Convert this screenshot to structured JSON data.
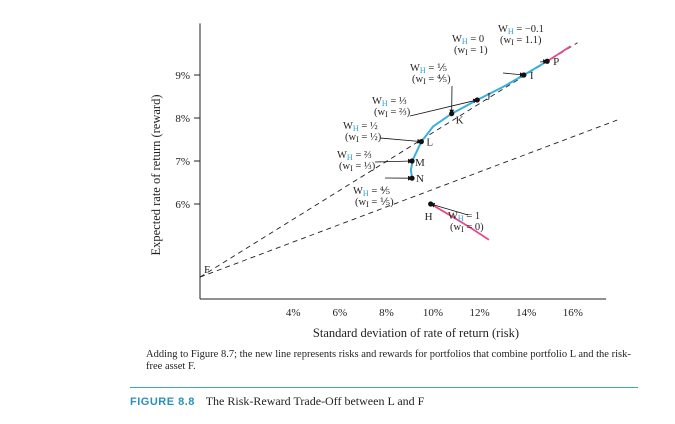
{
  "chart_data": {
    "type": "line",
    "xlabel": "Standard deviation of rate of return (risk)",
    "ylabel": "Expected rate of return (reward)",
    "x_ticks": [
      "4%",
      "6%",
      "8%",
      "10%",
      "12%",
      "14%",
      "16%"
    ],
    "x_tick_values": [
      4,
      6,
      8,
      10,
      12,
      14,
      16
    ],
    "y_ticks": [
      "6%",
      "7%",
      "8%",
      "9%"
    ],
    "y_tick_values": [
      6,
      7,
      8,
      9
    ],
    "xlim": [
      0,
      17
    ],
    "ylim": [
      4.0,
      10.2
    ],
    "grid": false,
    "curves": {
      "efficient_frontier": {
        "color": "#3ab0dc",
        "points": [
          [
            9.1,
            6.6
          ],
          [
            9.05,
            6.8
          ],
          [
            9.15,
            7.05
          ],
          [
            9.5,
            7.45
          ],
          [
            10.0,
            7.8
          ],
          [
            10.8,
            8.1
          ],
          [
            11.9,
            8.42
          ],
          [
            13.0,
            8.72
          ],
          [
            13.9,
            9.0
          ],
          [
            14.9,
            9.32
          ]
        ]
      },
      "lower_branch": {
        "color": "#e64a8c",
        "points": [
          [
            9.9,
            6.0
          ],
          [
            10.7,
            5.75
          ],
          [
            11.6,
            5.45
          ],
          [
            12.4,
            5.17
          ]
        ]
      },
      "upper_extension": {
        "color": "#e64a8c",
        "points": [
          [
            14.9,
            9.32
          ],
          [
            15.9,
            9.67
          ]
        ]
      },
      "line_F_L": {
        "style": "dashed",
        "points": [
          [
            0,
            4.3
          ],
          [
            16.2,
            9.75
          ]
        ]
      },
      "line_F_H": {
        "style": "dashed",
        "points": [
          [
            0,
            4.3
          ],
          [
            17.9,
            7.95
          ]
        ]
      }
    },
    "points": [
      {
        "label": "F",
        "x": 0.0,
        "y": 4.3
      },
      {
        "label": "H",
        "x": 9.9,
        "y": 6.0
      },
      {
        "label": "N",
        "x": 9.1,
        "y": 6.6
      },
      {
        "label": "M",
        "x": 9.1,
        "y": 7.0
      },
      {
        "label": "L",
        "x": 9.5,
        "y": 7.45
      },
      {
        "label": "K",
        "x": 10.8,
        "y": 8.1
      },
      {
        "label": "J",
        "x": 11.9,
        "y": 8.42
      },
      {
        "label": "I",
        "x": 13.9,
        "y": 9.0
      },
      {
        "label": "P",
        "x": 14.9,
        "y": 9.32
      }
    ],
    "weight_labels": [
      {
        "wh": "W_H = 0",
        "wi": "(w_I = 1)"
      },
      {
        "wh": "W_H = −0.1",
        "wi": "(w_I = 1.1)"
      },
      {
        "wh": "W_H = ⅕",
        "wi": "(w_I = ⅘)"
      },
      {
        "wh": "W_H = ⅓",
        "wi": "(w_I = ⅔)"
      },
      {
        "wh": "W_H = ½",
        "wi": "(w_I = ½)"
      },
      {
        "wh": "W_H = ⅔",
        "wi": "(w_I = ⅓)"
      },
      {
        "wh": "W_H = ⅘",
        "wi": "(w_I = ⅕)"
      },
      {
        "wh": "W_H = 1",
        "wi": "(w_I = 0)"
      }
    ]
  },
  "caption": "Adding to Figure 8.7; the new line represents risks and rewards for portfolios that combine portfolio L and the risk-free asset F.",
  "figure": {
    "number": "FIGURE 8.8",
    "title": "The Risk-Reward Trade-Off between L and F"
  }
}
